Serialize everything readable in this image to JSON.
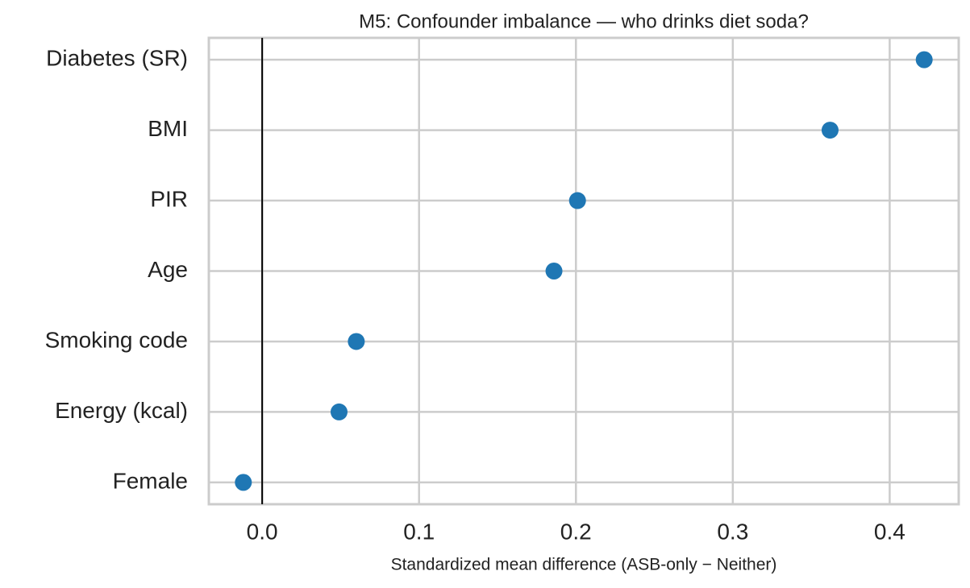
{
  "chart_data": {
    "type": "scatter",
    "title": "M5: Confounder imbalance — who drinks diet soda?",
    "x_label": "Standardized mean difference (ASB-only − Neither)",
    "categories": [
      "Diabetes (SR)",
      "BMI",
      "PIR",
      "Age",
      "Smoking code",
      "Energy (kcal)",
      "Female"
    ],
    "values": [
      0.422,
      0.362,
      0.201,
      0.186,
      0.06,
      0.049,
      -0.012
    ],
    "color": "#1f77b4",
    "xlim": [
      -0.034,
      0.444
    ],
    "xticks": [
      {
        "value": 0,
        "label": "0.0"
      },
      0.1,
      0.2,
      0.3,
      0.4
    ],
    "reference_line": 0,
    "grid": true
  }
}
